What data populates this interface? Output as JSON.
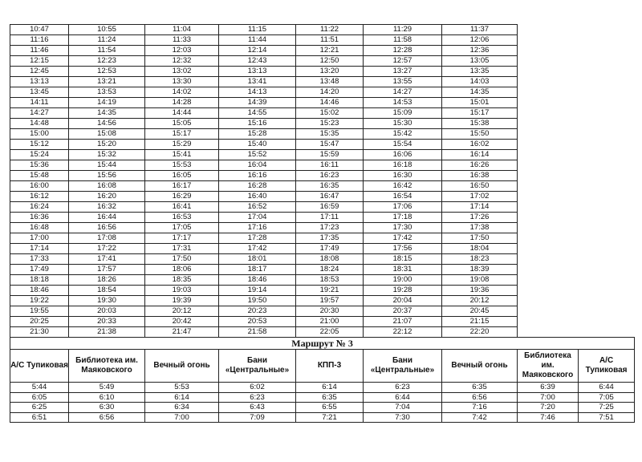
{
  "top_table": {
    "rows": [
      [
        "10:47",
        "10:55",
        "11:04",
        "11:15",
        "11:22",
        "11:29",
        "11:37"
      ],
      [
        "11:16",
        "11:24",
        "11:33",
        "11:44",
        "11:51",
        "11:58",
        "12:06"
      ],
      [
        "11:46",
        "11:54",
        "12:03",
        "12:14",
        "12:21",
        "12:28",
        "12:36"
      ],
      [
        "12:15",
        "12:23",
        "12:32",
        "12:43",
        "12:50",
        "12:57",
        "13:05"
      ],
      [
        "12:45",
        "12:53",
        "13:02",
        "13:13",
        "13:20",
        "13:27",
        "13:35"
      ],
      [
        "13:13",
        "13:21",
        "13:30",
        "13:41",
        "13:48",
        "13:55",
        "14:03"
      ],
      [
        "13:45",
        "13:53",
        "14:02",
        "14:13",
        "14:20",
        "14:27",
        "14:35"
      ],
      [
        "14:11",
        "14:19",
        "14:28",
        "14:39",
        "14:46",
        "14:53",
        "15:01"
      ],
      [
        "14:27",
        "14:35",
        "14:44",
        "14:55",
        "15:02",
        "15:09",
        "15:17"
      ],
      [
        "14:48",
        "14:56",
        "15:05",
        "15:16",
        "15:23",
        "15:30",
        "15:38"
      ],
      [
        "15:00",
        "15:08",
        "15:17",
        "15:28",
        "15:35",
        "15:42",
        "15:50"
      ],
      [
        "15:12",
        "15:20",
        "15:29",
        "15:40",
        "15:47",
        "15:54",
        "16:02"
      ],
      [
        "15:24",
        "15:32",
        "15:41",
        "15:52",
        "15:59",
        "16:06",
        "16:14"
      ],
      [
        "15:36",
        "15:44",
        "15:53",
        "16:04",
        "16:11",
        "16:18",
        "16:26"
      ],
      [
        "15:48",
        "15:56",
        "16:05",
        "16:16",
        "16:23",
        "16:30",
        "16:38"
      ],
      [
        "16:00",
        "16:08",
        "16:17",
        "16:28",
        "16:35",
        "16:42",
        "16:50"
      ],
      [
        "16:12",
        "16:20",
        "16:29",
        "16:40",
        "16:47",
        "16:54",
        "17:02"
      ],
      [
        "16:24",
        "16:32",
        "16:41",
        "16:52",
        "16:59",
        "17:06",
        "17:14"
      ],
      [
        "16:36",
        "16:44",
        "16:53",
        "17:04",
        "17:11",
        "17:18",
        "17:26"
      ],
      [
        "16:48",
        "16:56",
        "17:05",
        "17:16",
        "17:23",
        "17:30",
        "17:38"
      ],
      [
        "17:00",
        "17:08",
        "17:17",
        "17:28",
        "17:35",
        "17:42",
        "17:50"
      ],
      [
        "17:14",
        "17:22",
        "17:31",
        "17:42",
        "17:49",
        "17:56",
        "18:04"
      ],
      [
        "17:33",
        "17:41",
        "17:50",
        "18:01",
        "18:08",
        "18:15",
        "18:23"
      ],
      [
        "17:49",
        "17:57",
        "18:06",
        "18:17",
        "18:24",
        "18:31",
        "18:39"
      ],
      [
        "18:18",
        "18:26",
        "18:35",
        "18:46",
        "18:53",
        "19:00",
        "19:08"
      ],
      [
        "18:46",
        "18:54",
        "19:03",
        "19:14",
        "19:21",
        "19:28",
        "19:36"
      ],
      [
        "19:22",
        "19:30",
        "19:39",
        "19:50",
        "19:57",
        "20:04",
        "20:12"
      ],
      [
        "19:55",
        "20:03",
        "20:12",
        "20:23",
        "20:30",
        "20:37",
        "20:45"
      ],
      [
        "20:25",
        "20:33",
        "20:42",
        "20:53",
        "21:00",
        "21:07",
        "21:15"
      ],
      [
        "21:30",
        "21:38",
        "21:47",
        "21:58",
        "22:05",
        "22:12",
        "22:20"
      ]
    ]
  },
  "route3": {
    "title": "Маршрут № 3",
    "headers": [
      "А/С Тупиковая",
      "Библиотека им. Маяковского",
      "Вечный огонь",
      "Бани «Центральные»",
      "КПП-3",
      "Бани «Центральные»",
      "Вечный огонь",
      "Библиотека им. Маяковского",
      "А/С Тупиковая"
    ],
    "rows": [
      [
        "5:44",
        "5:49",
        "5:53",
        "6:02",
        "6:14",
        "6:23",
        "6:35",
        "6:39",
        "6:44"
      ],
      [
        "6:05",
        "6:10",
        "6:14",
        "6:23",
        "6:35",
        "6:44",
        "6:56",
        "7:00",
        "7:05"
      ],
      [
        "6:25",
        "6:30",
        "6:34",
        "6:43",
        "6:55",
        "7:04",
        "7:16",
        "7:20",
        "7:25"
      ],
      [
        "6:51",
        "6:56",
        "7:00",
        "7:09",
        "7:21",
        "7:30",
        "7:42",
        "7:46",
        "7:51"
      ]
    ]
  }
}
